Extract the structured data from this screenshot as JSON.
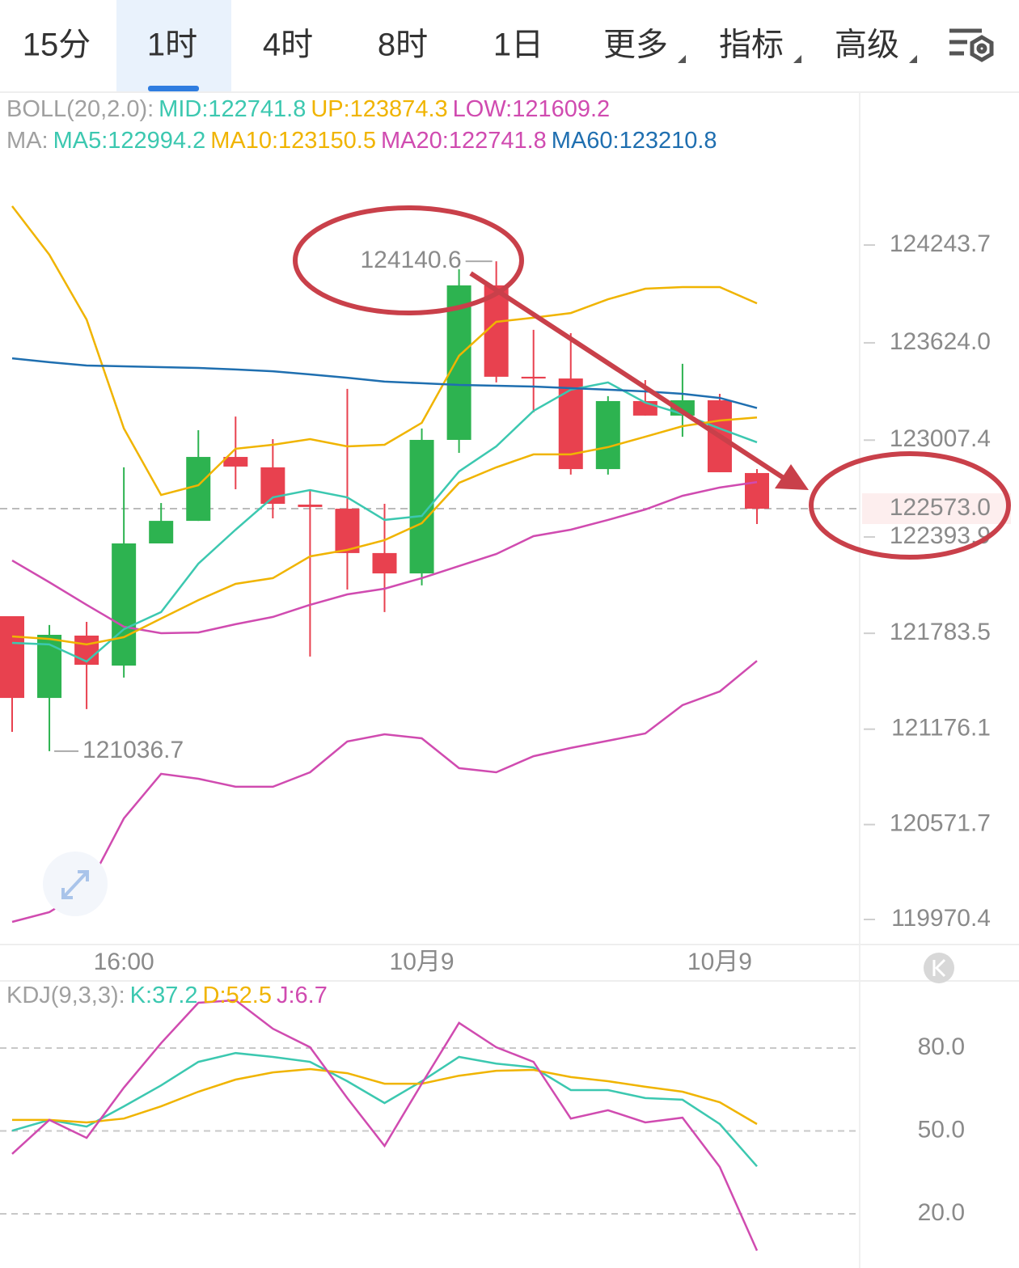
{
  "tabs": [
    "15分",
    "1时",
    "4时",
    "8时",
    "1日",
    "更多",
    "指标",
    "高级"
  ],
  "active_tab": 1,
  "chart_data": [
    {
      "type": "candlestick",
      "legend": [
        [
          {
            "text": "BOLL(20,2.0):",
            "color": "#a0a0a0"
          },
          {
            "text": "MID:122741.8",
            "color": "#3cc8b0"
          },
          {
            "text": "UP:123874.3",
            "color": "#f0b400"
          },
          {
            "text": "LOW:121609.2",
            "color": "#d04bb0"
          }
        ],
        [
          {
            "text": "MA:",
            "color": "#a0a0a0"
          },
          {
            "text": "MA5:122994.2",
            "color": "#3cc8b0"
          },
          {
            "text": "MA10:123150.5",
            "color": "#f0b400"
          },
          {
            "text": "MA20:122741.8",
            "color": "#d04bb0"
          },
          {
            "text": "MA60:123210.8",
            "color": "#1f6fb0"
          }
        ]
      ],
      "categories": [
        null,
        null,
        null,
        "16:00",
        null,
        null,
        null,
        null,
        null,
        null,
        null,
        "10月9",
        null,
        null,
        null,
        null,
        null,
        null,
        null,
        "10月9",
        null
      ],
      "open": [
        121892,
        121374,
        121769,
        121579,
        122353,
        122496,
        122901,
        122835,
        122599,
        122573,
        122292,
        122163,
        123009,
        123988,
        123409,
        123398,
        122824,
        123255,
        123163,
        123260,
        122799
      ],
      "high": [
        121892,
        121836,
        121856,
        122835,
        122609,
        123070,
        123157,
        123014,
        122696,
        123332,
        122604,
        123081,
        124090,
        124140.6,
        123706,
        123685,
        123286,
        123388,
        123491,
        123301,
        122824
      ],
      "low": [
        121159,
        121036.7,
        121303,
        121503,
        122353,
        122496,
        122696,
        122512,
        121636,
        122061,
        121918,
        122087,
        122927,
        123373,
        123183,
        122789,
        122789,
        123163,
        123029,
        122804,
        122476
      ],
      "close": [
        121374,
        121774,
        121584,
        122353,
        122496,
        122901,
        122840,
        122604,
        122584,
        122292,
        122163,
        123009,
        123988,
        123409,
        123398,
        122824,
        123255,
        123163,
        123260,
        122804,
        122573
      ],
      "up_color": "#2db350",
      "down_color": "#e8414f",
      "series": [
        {
          "name": "UP",
          "color": "#f0b400",
          "values": [
            124490,
            124182,
            123771,
            123081,
            122660,
            122722,
            122953,
            122978,
            123014,
            122968,
            122978,
            123117,
            123542,
            123757,
            123783,
            123813,
            123900,
            123967,
            123977,
            123977,
            123874.3
          ]
        },
        {
          "name": "MID",
          "color": "#d04bb0",
          "values": [
            122245,
            122107,
            121964,
            121825,
            121784,
            121789,
            121841,
            121887,
            121964,
            122030,
            122066,
            122133,
            122210,
            122286,
            122399,
            122440,
            122502,
            122568,
            122655,
            122707,
            122741.8
          ]
        },
        {
          "name": "LOW",
          "color": "#d04bb0",
          "values": [
            119955,
            120017,
            120160,
            120611,
            120893,
            120862,
            120811,
            120811,
            120903,
            121098,
            121144,
            121118,
            120929,
            120903,
            121005,
            121057,
            121103,
            121149,
            121328,
            121415,
            121609.2
          ]
        },
        {
          "name": "MA5",
          "color": "#3cc8b0",
          "values": [
            121723,
            121713,
            121605,
            121810,
            121918,
            122225,
            122440,
            122645,
            122691,
            122645,
            122502,
            122527,
            122809,
            122968,
            123193,
            123327,
            123373,
            123245,
            123173,
            123081,
            122994.2
          ]
        },
        {
          "name": "MA10",
          "color": "#f0b400",
          "values": [
            121764,
            121748,
            121713,
            121759,
            121877,
            121994,
            122097,
            122133,
            122271,
            122312,
            122374,
            122481,
            122737,
            122835,
            122917,
            122917,
            122963,
            123029,
            123096,
            123132,
            123150.5
          ]
        },
        {
          "name": "MA60",
          "color": "#1f6fb0",
          "values": [
            123526,
            123501,
            123480,
            123475,
            123470,
            123465,
            123455,
            123444,
            123424,
            123403,
            123378,
            123368,
            123357,
            123352,
            123347,
            123337,
            123327,
            123316,
            123301,
            123275,
            123210.8
          ]
        }
      ],
      "ylim": [
        119811.6,
        124771.4
      ],
      "yticks": [
        124243.7,
        {
          "value": 123624,
          "label": "123624.0"
        },
        123007.4,
        122393.9,
        121783.5,
        121176.1,
        120571.7,
        119970.4
      ],
      "last_price": {
        "value": 122573,
        "label": "122573.0"
      },
      "high_label": "124140.6",
      "low_label": "121036.7"
    },
    {
      "type": "line",
      "legend": [
        [
          {
            "text": "KDJ(9,3,3):",
            "color": "#a0a0a0"
          },
          {
            "text": "K:37.2",
            "color": "#3cc8b0"
          },
          {
            "text": "D:52.5",
            "color": "#f0b400"
          },
          {
            "text": "J:6.7",
            "color": "#d04bb0"
          }
        ]
      ],
      "series": [
        {
          "name": "K",
          "color": "#3cc8b0",
          "values": [
            50.1,
            54.0,
            51.6,
            58.9,
            66.5,
            75.0,
            78.2,
            76.8,
            75.0,
            68.0,
            60.1,
            68.0,
            76.8,
            74.4,
            73.0,
            64.8,
            64.8,
            61.9,
            61.3,
            52.5,
            37.2
          ]
        },
        {
          "name": "D",
          "color": "#f0b400",
          "values": [
            54.0,
            54.0,
            53.1,
            54.5,
            58.9,
            64.2,
            68.6,
            71.2,
            72.4,
            70.9,
            67.1,
            67.1,
            70.0,
            71.8,
            72.1,
            69.5,
            68.0,
            66.0,
            64.2,
            60.4,
            52.5
          ]
        },
        {
          "name": "J",
          "color": "#d04bb0",
          "values": [
            41.7,
            54.0,
            47.5,
            65.7,
            81.8,
            96.4,
            97.3,
            87.0,
            80.3,
            61.9,
            44.6,
            67.1,
            89.1,
            80.3,
            75.0,
            54.5,
            57.5,
            53.1,
            54.8,
            37.0,
            6.7
          ]
        }
      ],
      "ylim": [
        0,
        100
      ],
      "yticks": [
        {
          "value": 80,
          "label": "80.0"
        },
        {
          "value": 50,
          "label": "50.0"
        },
        {
          "value": 20,
          "label": "20.0"
        }
      ],
      "grid": true
    }
  ]
}
